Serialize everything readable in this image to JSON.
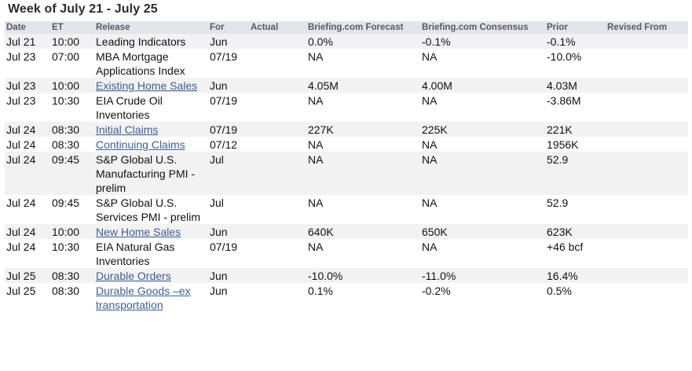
{
  "title": "Week of July 21 - July 25",
  "columns": [
    "Date",
    "ET",
    "Release",
    "For",
    "Actual",
    "Briefing.com Forecast",
    "Briefing.com Consensus",
    "Prior",
    "Revised From"
  ],
  "rows": [
    {
      "date": "Jul 21",
      "time": "10:00",
      "release": "Leading Indicators",
      "link": false,
      "for": "Jun",
      "actual": "",
      "forecast": "0.0%",
      "consensus": "-0.1%",
      "prior": "-0.1%",
      "revised": ""
    },
    {
      "date": "Jul 23",
      "time": "07:00",
      "release": "MBA Mortgage Applications Index",
      "link": false,
      "for": "07/19",
      "actual": "",
      "forecast": "NA",
      "consensus": "NA",
      "prior": "-10.0%",
      "revised": ""
    },
    {
      "date": "Jul 23",
      "time": "10:00",
      "release": "Existing Home Sales",
      "link": true,
      "for": "Jun",
      "actual": "",
      "forecast": "4.05M",
      "consensus": "4.00M",
      "prior": "4.03M",
      "revised": ""
    },
    {
      "date": "Jul 23",
      "time": "10:30",
      "release": "EIA Crude Oil Inventories",
      "link": false,
      "for": "07/19",
      "actual": "",
      "forecast": "NA",
      "consensus": "NA",
      "prior": "-3.86M",
      "revised": ""
    },
    {
      "date": "Jul 24",
      "time": "08:30",
      "release": "Initial Claims",
      "link": true,
      "for": "07/19",
      "actual": "",
      "forecast": "227K",
      "consensus": "225K",
      "prior": "221K",
      "revised": ""
    },
    {
      "date": "Jul 24",
      "time": "08:30",
      "release": "Continuing Claims",
      "link": true,
      "for": "07/12",
      "actual": "",
      "forecast": "NA",
      "consensus": "NA",
      "prior": "1956K",
      "revised": ""
    },
    {
      "date": "Jul 24",
      "time": "09:45",
      "release": "S&P Global U.S. Manufacturing PMI - prelim",
      "link": false,
      "for": "Jul",
      "actual": "",
      "forecast": "NA",
      "consensus": "NA",
      "prior": "52.9",
      "revised": ""
    },
    {
      "date": "Jul 24",
      "time": "09:45",
      "release": "S&P Global U.S. Services PMI - prelim",
      "link": false,
      "for": "Jul",
      "actual": "",
      "forecast": "NA",
      "consensus": "NA",
      "prior": "52.9",
      "revised": ""
    },
    {
      "date": "Jul 24",
      "time": "10:00",
      "release": "New Home Sales",
      "link": true,
      "for": "Jun",
      "actual": "",
      "forecast": "640K",
      "consensus": "650K",
      "prior": "623K",
      "revised": ""
    },
    {
      "date": "Jul 24",
      "time": "10:30",
      "release": "EIA Natural Gas Inventories",
      "link": false,
      "for": "07/19",
      "actual": "",
      "forecast": "NA",
      "consensus": "NA",
      "prior": "+46 bcf",
      "revised": ""
    },
    {
      "date": "Jul 25",
      "time": "08:30",
      "release": "Durable Orders",
      "link": true,
      "for": "Jun",
      "actual": "",
      "forecast": "-10.0%",
      "consensus": "-11.0%",
      "prior": "16.4%",
      "revised": ""
    },
    {
      "date": "Jul 25",
      "time": "08:30",
      "release": "Durable Goods –ex transportation",
      "link": true,
      "for": "Jun",
      "actual": "",
      "forecast": "0.1%",
      "consensus": "-0.2%",
      "prior": "0.5%",
      "revised": ""
    }
  ],
  "colors": {
    "header_bg": "#e2e5ea",
    "header_text": "#555a63",
    "row_alt_bg": "#f2f2f2",
    "link": "#3b5f96"
  }
}
